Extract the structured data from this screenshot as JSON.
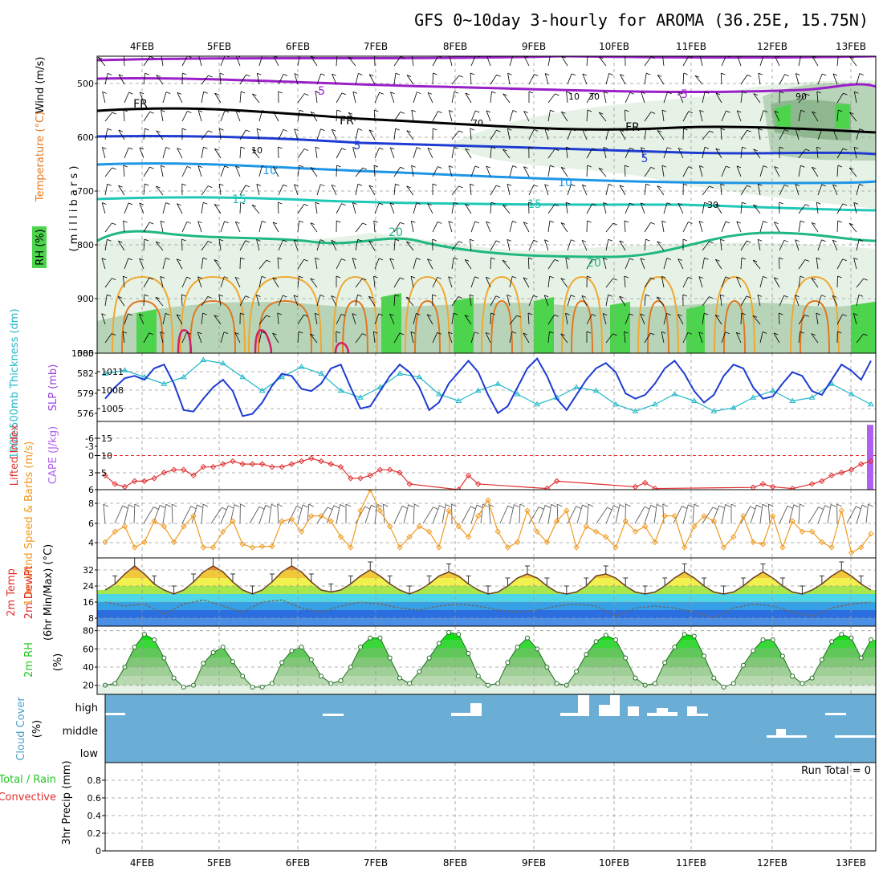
{
  "title": "GFS 0~10day 3-hourly for AROMA (36.25E, 15.75N)",
  "dates": [
    "4FEB",
    "5FEB",
    "6FEB",
    "7FEB",
    "8FEB",
    "9FEB",
    "10FEB",
    "11FEB",
    "12FEB",
    "13FEB"
  ],
  "colors": {
    "frame": "#000000",
    "grid": "#999999",
    "slp": "#1e3cd2",
    "thickness": "#20b8c8",
    "lifted": "#e03030",
    "cape": "#b060f0",
    "wind": "#f09a20",
    "cloud": "#6aaed6",
    "rh": "#22c822"
  },
  "panels": {
    "upper": {
      "ylabel_wind": "Wind (m/s)",
      "ylabel_temp": "Temperature (°C)",
      "ylabel_rh": "RH (%)",
      "ylabel_mb": "( m i l l i b a r s )",
      "ticks": [
        "500",
        "600",
        "700",
        "800",
        "900",
        "1000"
      ],
      "contour_labels": {
        "fr": "FR",
        "m5": "-5",
        "p5": "5",
        "p10": "10",
        "p15": "15",
        "p20": "20",
        "rh10": "10",
        "rh30": "30",
        "rh70": "70",
        "rh90": "90"
      }
    },
    "thickness": {
      "ylabel_left": "1000-500mb Thickness (dm)",
      "ylabel_right": "SLP (mb)",
      "left_ticks": [
        "585",
        "582",
        "579",
        "576"
      ],
      "right_ticks": [
        "1011",
        "1008",
        "1005"
      ]
    },
    "lifted": {
      "ylabel_left": "Lifted Index",
      "ylabel_right": "CAPE (J/kg)",
      "left_ticks": [
        "-6",
        "-3",
        "0",
        "3",
        "6"
      ],
      "right_ticks": [
        "15",
        "10",
        "5"
      ]
    },
    "wind10": {
      "ylabel": "10m Wind Speed & Barbs (m/s)",
      "ticks": [
        "8",
        "6",
        "4"
      ]
    },
    "temp": {
      "ylabel1": "2m Temp",
      "ylabel2": "2m DewPt",
      "ylabel3": "(6hr Min/Max) (°C)",
      "ticks": [
        "32",
        "24",
        "16",
        "8"
      ]
    },
    "rh2m": {
      "ylabel": "2m RH",
      "unit": "(%)",
      "ticks": [
        "80",
        "60",
        "40",
        "20"
      ]
    },
    "cloud": {
      "ylabel": "Cloud Cover",
      "unit": "(%)",
      "levels": [
        "high",
        "middle",
        "low"
      ]
    },
    "precip": {
      "ylabel1": "Total / Rain",
      "ylabel2": "Convective",
      "ylabel3": "3hr Precip (mm)",
      "ticks": [
        "0.8",
        "0.6",
        "0.4",
        "0.2",
        "0"
      ],
      "run_total": "Run Total = 0"
    }
  },
  "chart_data": [
    {
      "type": "line",
      "name": "slp",
      "ylabel": "SLP (mb)",
      "ylim": [
        1003.5,
        1012.5
      ],
      "x": [
        0,
        3,
        6,
        9,
        12,
        15,
        18,
        21,
        24,
        27,
        30,
        33,
        36,
        39,
        42,
        45,
        48,
        51,
        54,
        57,
        60,
        63,
        66,
        69,
        72,
        75,
        78,
        81,
        84,
        87,
        90,
        93,
        96,
        99,
        102,
        105,
        108,
        111,
        114,
        117,
        120,
        123,
        126,
        129,
        132,
        135,
        138,
        141,
        144,
        147,
        150,
        153,
        156,
        159,
        162,
        165,
        168,
        171,
        174,
        177,
        180,
        183,
        186,
        189,
        192,
        195,
        198,
        201,
        204,
        207,
        210,
        213,
        216,
        219,
        222,
        225,
        228,
        231,
        234
      ],
      "values": [
        1006.5,
        1008.0,
        1009.2,
        1009.5,
        1009.0,
        1010.5,
        1011.0,
        1008.5,
        1005.0,
        1004.8,
        1006.5,
        1008.0,
        1009.0,
        1007.5,
        1004.2,
        1004.5,
        1006.0,
        1008.2,
        1009.8,
        1009.5,
        1007.8,
        1007.5,
        1008.5,
        1010.5,
        1011.0,
        1008.0,
        1005.2,
        1005.5,
        1007.5,
        1009.5,
        1011.0,
        1010.0,
        1008.0,
        1005.0,
        1006.0,
        1008.5,
        1010.0,
        1011.5,
        1010.0,
        1007.0,
        1004.6,
        1005.5,
        1008.0,
        1010.5,
        1011.8,
        1009.5,
        1006.5,
        1005.0,
        1007.0,
        1009.0,
        1010.5,
        1011.2,
        1010.0,
        1007.2,
        1006.5,
        1007.0,
        1008.5,
        1010.5,
        1011.5,
        1009.8,
        1007.5,
        1006.0,
        1007.0,
        1009.5,
        1011.0,
        1010.5,
        1008.0,
        1006.5,
        1006.8,
        1008.5,
        1010.0,
        1009.5,
        1007.5,
        1007.0,
        1009.0,
        1011.0,
        1010.2,
        1009.0,
        1011.5
      ]
    },
    {
      "type": "line",
      "name": "thickness",
      "ylabel": "1000-500mb Thickness (dm)",
      "ylim": [
        575,
        585
      ],
      "x": [
        0,
        6,
        12,
        18,
        24,
        30,
        36,
        42,
        48,
        54,
        60,
        66,
        72,
        78,
        84,
        90,
        96,
        102,
        108,
        114,
        120,
        126,
        132,
        138,
        144,
        150,
        156,
        162,
        168,
        174,
        180,
        186,
        192,
        198,
        204,
        210,
        216,
        222,
        228,
        234
      ],
      "values": [
        582.0,
        582.5,
        581.5,
        580.5,
        581.5,
        584.0,
        583.5,
        581.5,
        579.5,
        581.5,
        583.0,
        582.0,
        579.5,
        578.5,
        580.0,
        582.0,
        581.5,
        579.0,
        578.0,
        579.5,
        580.5,
        579.0,
        577.5,
        578.5,
        580.0,
        579.5,
        577.5,
        576.5,
        577.5,
        579.0,
        578.0,
        576.5,
        577.0,
        578.5,
        579.5,
        578.0,
        578.5,
        580.5,
        579.0,
        577.5
      ]
    },
    {
      "type": "line",
      "name": "lifted_index",
      "ylabel": "Lifted Index",
      "ylim": [
        6,
        -6
      ],
      "x": [
        0,
        3,
        6,
        9,
        12,
        15,
        18,
        21,
        24,
        27,
        30,
        33,
        36,
        39,
        42,
        45,
        48,
        51,
        54,
        57,
        60,
        63,
        66,
        69,
        72,
        75,
        78,
        81,
        84,
        87,
        90,
        93,
        108,
        111,
        114,
        135,
        138,
        162,
        165,
        168,
        198,
        201,
        204,
        210,
        216,
        219,
        222,
        225,
        228,
        231,
        234
      ],
      "values": [
        3.5,
        5.0,
        5.5,
        4.5,
        4.5,
        4.0,
        3.0,
        2.5,
        2.5,
        3.5,
        2.0,
        2.0,
        1.5,
        1.0,
        1.5,
        1.5,
        1.5,
        2.0,
        2.0,
        1.5,
        1.0,
        0.5,
        1.0,
        1.5,
        2.0,
        4.0,
        4.0,
        3.5,
        2.5,
        2.5,
        3.0,
        5.0,
        6.0,
        3.5,
        5.0,
        5.8,
        4.5,
        5.5,
        4.8,
        5.8,
        5.6,
        5.0,
        5.5,
        5.8,
        5.0,
        4.5,
        3.5,
        3.0,
        2.5,
        1.5,
        1.0
      ]
    },
    {
      "type": "bar",
      "name": "cape",
      "ylabel": "CAPE (J/kg)",
      "x": [
        234
      ],
      "values": [
        19
      ]
    },
    {
      "type": "line",
      "name": "wind_speed_10m",
      "ylabel": "10m Wind Speed & Barbs (m/s)",
      "ylim": [
        2.5,
        9
      ],
      "x": [
        0,
        3,
        6,
        9,
        12,
        15,
        18,
        21,
        24,
        27,
        30,
        33,
        36,
        39,
        42,
        45,
        48,
        51,
        54,
        57,
        60,
        63,
        66,
        69,
        72,
        75,
        78,
        81,
        84,
        87,
        90,
        93,
        96,
        99,
        102,
        105,
        108,
        111,
        114,
        117,
        120,
        123,
        126,
        129,
        132,
        135,
        138,
        141,
        144,
        147,
        150,
        153,
        156,
        159,
        162,
        165,
        168,
        171,
        174,
        177,
        180,
        183,
        186,
        189,
        192,
        195,
        198,
        201,
        204,
        207,
        210,
        213,
        216,
        219,
        222,
        225,
        228,
        231,
        234
      ],
      "values": [
        4.0,
        5.0,
        5.5,
        3.5,
        4.0,
        6.0,
        5.5,
        4.0,
        5.5,
        6.5,
        3.5,
        3.5,
        5.0,
        6.0,
        3.8,
        3.5,
        3.6,
        3.6,
        6.0,
        6.2,
        5.0,
        6.5,
        6.5,
        6.0,
        4.5,
        3.5,
        7.0,
        9.0,
        7.0,
        5.5,
        3.5,
        4.5,
        5.5,
        5.0,
        3.5,
        7.0,
        5.5,
        4.5,
        6.5,
        8.0,
        5.0,
        3.5,
        4.0,
        7.0,
        5.0,
        4.0,
        6.0,
        7.0,
        3.5,
        5.5,
        5.0,
        4.5,
        3.5,
        6.0,
        5.0,
        5.5,
        4.0,
        6.5,
        6.5,
        3.5,
        5.5,
        6.5,
        6.0,
        3.5,
        4.5,
        6.5,
        4.0,
        3.8,
        6.5,
        3.5,
        6.0,
        5.0,
        5.0,
        4.0,
        3.5,
        7.0,
        3.0,
        3.5,
        4.8
      ]
    },
    {
      "type": "area",
      "name": "temp_2m",
      "ylabel": "2m Temp (°C)",
      "ylim": [
        4,
        38
      ],
      "x": [
        0,
        3,
        6,
        9,
        12,
        15,
        18,
        21,
        24,
        27,
        30,
        33,
        36,
        39,
        42,
        45,
        48,
        51,
        54,
        57,
        60,
        63,
        66,
        69,
        72,
        75,
        78,
        81,
        84,
        87,
        90,
        93,
        96,
        99,
        102,
        105,
        108,
        111,
        114,
        117,
        120,
        123,
        126,
        129,
        132,
        135,
        138,
        141,
        144,
        147,
        150,
        153,
        156,
        159,
        162,
        165,
        168,
        171,
        174,
        177,
        180,
        183,
        186,
        189,
        192,
        195,
        198,
        201,
        204,
        207,
        210,
        213,
        216,
        219,
        222,
        225,
        228,
        231,
        234
      ],
      "values": [
        22,
        25,
        30,
        34,
        30,
        25,
        22,
        20,
        22,
        26,
        31,
        34,
        31,
        26,
        22,
        20,
        22,
        26,
        31,
        34,
        31,
        26,
        22,
        21,
        22,
        25,
        29,
        32,
        29,
        25,
        22,
        20,
        22,
        25,
        29,
        31,
        29,
        25,
        22,
        20,
        21,
        24,
        28,
        30,
        28,
        24,
        21,
        20,
        21,
        24,
        29,
        30,
        28,
        24,
        21,
        20,
        21,
        24,
        28,
        31,
        28,
        24,
        21,
        20,
        21,
        24,
        28,
        31,
        28,
        24,
        21,
        20,
        22,
        25,
        29,
        32,
        29,
        25,
        22
      ]
    },
    {
      "type": "line",
      "name": "dewpoint_2m",
      "ylabel": "2m DewPt (°C)",
      "ylim": [
        4,
        38
      ],
      "x": [
        0,
        6,
        12,
        18,
        24,
        30,
        36,
        42,
        48,
        54,
        60,
        66,
        72,
        78,
        84,
        90,
        96,
        102,
        108,
        114,
        120,
        126,
        132,
        138,
        144,
        150,
        156,
        162,
        168,
        174,
        180,
        186,
        192,
        198,
        204,
        210,
        216,
        222,
        228,
        234
      ],
      "values": [
        16,
        14,
        15,
        10,
        15,
        17,
        14,
        11,
        16,
        17,
        13,
        11,
        14,
        16,
        15,
        13,
        12,
        14,
        15,
        14,
        12,
        11,
        12,
        14,
        15,
        14,
        9,
        13,
        14,
        13,
        11,
        8,
        13,
        15,
        14,
        11,
        9,
        13,
        15,
        16
      ]
    },
    {
      "type": "area",
      "name": "rh_2m",
      "ylabel": "2m RH (%)",
      "ylim": [
        10,
        85
      ],
      "x": [
        0,
        3,
        6,
        9,
        12,
        15,
        18,
        21,
        24,
        27,
        30,
        33,
        36,
        39,
        42,
        45,
        48,
        51,
        54,
        57,
        60,
        63,
        66,
        69,
        72,
        75,
        78,
        81,
        84,
        87,
        90,
        93,
        96,
        99,
        102,
        105,
        108,
        111,
        114,
        117,
        120,
        123,
        126,
        129,
        132,
        135,
        138,
        141,
        144,
        147,
        150,
        153,
        156,
        159,
        162,
        165,
        168,
        171,
        174,
        177,
        180,
        183,
        186,
        189,
        192,
        195,
        198,
        201,
        204,
        207,
        210,
        213,
        216,
        219,
        222,
        225,
        228,
        231,
        234
      ],
      "values": [
        20,
        22,
        40,
        62,
        76,
        70,
        50,
        28,
        18,
        20,
        44,
        56,
        62,
        46,
        30,
        18,
        18,
        22,
        45,
        58,
        62,
        48,
        30,
        22,
        25,
        40,
        62,
        72,
        72,
        50,
        28,
        22,
        35,
        50,
        66,
        78,
        76,
        55,
        30,
        20,
        22,
        45,
        62,
        72,
        60,
        40,
        22,
        20,
        35,
        54,
        68,
        75,
        70,
        50,
        28,
        20,
        22,
        45,
        62,
        76,
        74,
        52,
        28,
        18,
        22,
        42,
        58,
        70,
        70,
        52,
        30,
        22,
        28,
        48,
        68,
        76,
        72,
        50,
        70
      ]
    }
  ]
}
